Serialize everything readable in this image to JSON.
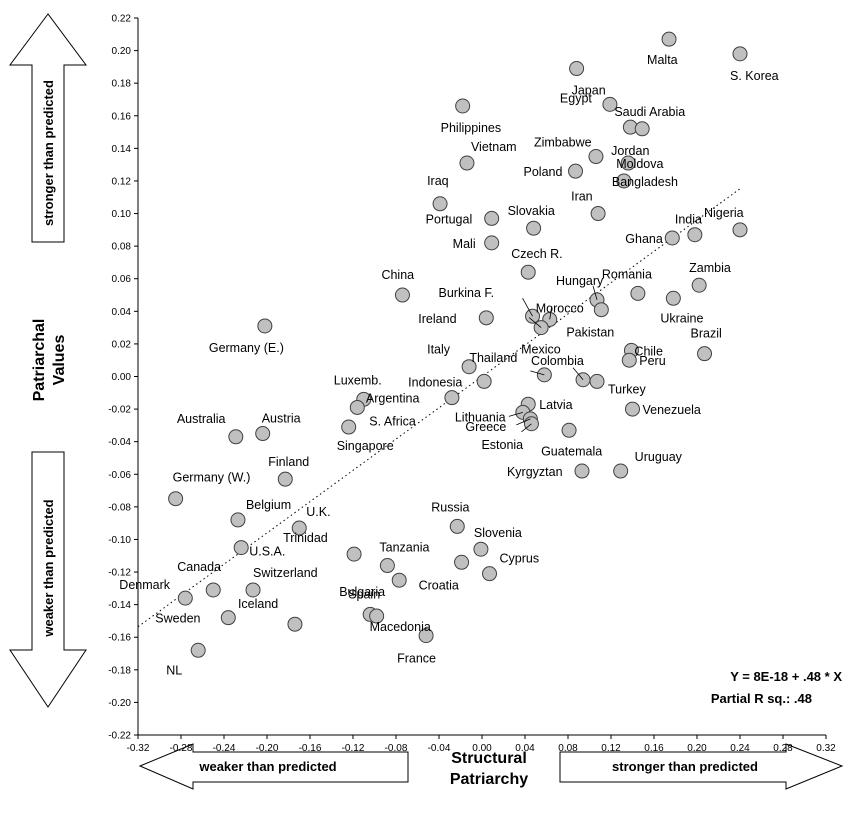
{
  "chart_data": {
    "type": "scatter",
    "xlim": [
      -0.32,
      0.32
    ],
    "ylim": [
      -0.22,
      0.22
    ],
    "x_ticks": [
      "-0.32",
      "-0.28",
      "-0.24",
      "-0.20",
      "-0.16",
      "-0.12",
      "-0.08",
      "-0.04",
      "0.00",
      "0.04",
      "0.08",
      "0.12",
      "0.16",
      "0.20",
      "0.24",
      "0.28",
      "0.32"
    ],
    "y_ticks": [
      "0.22",
      "0.20",
      "0.18",
      "0.16",
      "0.14",
      "0.12",
      "0.10",
      "0.08",
      "0.06",
      "0.04",
      "0.02",
      "0.00",
      "-0.02",
      "-0.04",
      "-0.06",
      "-0.08",
      "-0.10",
      "-0.12",
      "-0.14",
      "-0.16",
      "-0.18",
      "-0.20",
      "-0.22"
    ],
    "xlabel": "Structural Patriarchy",
    "ylabel": "Patriarchal Values",
    "x_arrow_left": "weaker than predicted",
    "x_arrow_right": "stronger than predicted",
    "y_arrow_top": "stronger than predicted",
    "y_arrow_bottom": "weaker than predicted",
    "equation": "Y = 8E-18 + .48 * X",
    "r_squared": "Partial R sq.: .48",
    "trendline": {
      "intercept": 0.0,
      "slope": 0.48,
      "x_range": [
        -0.32,
        0.24
      ]
    },
    "colors": {
      "marker_fill": "#c0c0c0",
      "marker_stroke": "#404040"
    },
    "points": [
      {
        "label": "Malta",
        "x": 0.174,
        "y": 0.207
      },
      {
        "label": "S. Korea",
        "x": 0.24,
        "y": 0.198
      },
      {
        "label": "Japan",
        "x": 0.088,
        "y": 0.189
      },
      {
        "label": "Egypt",
        "x": 0.119,
        "y": 0.167
      },
      {
        "label": "Philippines",
        "x": -0.018,
        "y": 0.166
      },
      {
        "label": "Saudi Arabia",
        "x": 0.138,
        "y": 0.153
      },
      {
        "label": "Jordan",
        "x": 0.149,
        "y": 0.152
      },
      {
        "label": "Zimbabwe",
        "x": 0.106,
        "y": 0.135
      },
      {
        "label": "Vietnam",
        "x": -0.014,
        "y": 0.131
      },
      {
        "label": "Moldova",
        "x": 0.136,
        "y": 0.131
      },
      {
        "label": "Poland",
        "x": 0.087,
        "y": 0.126
      },
      {
        "label": "Bangladesh",
        "x": 0.132,
        "y": 0.12
      },
      {
        "label": "Iraq",
        "x": -0.039,
        "y": 0.106
      },
      {
        "label": "Iran",
        "x": 0.108,
        "y": 0.1
      },
      {
        "label": "Portugal",
        "x": 0.009,
        "y": 0.097
      },
      {
        "label": "Slovakia",
        "x": 0.048,
        "y": 0.091
      },
      {
        "label": "Nigeria",
        "x": 0.24,
        "y": 0.09
      },
      {
        "label": "India",
        "x": 0.198,
        "y": 0.087
      },
      {
        "label": "Ghana",
        "x": 0.177,
        "y": 0.085
      },
      {
        "label": "Mali",
        "x": 0.009,
        "y": 0.082
      },
      {
        "label": "Czech R.",
        "x": 0.043,
        "y": 0.064
      },
      {
        "label": "Zambia",
        "x": 0.202,
        "y": 0.056
      },
      {
        "label": "Romania",
        "x": 0.145,
        "y": 0.051
      },
      {
        "label": "China",
        "x": -0.074,
        "y": 0.05
      },
      {
        "label": "Ukraine",
        "x": 0.178,
        "y": 0.048
      },
      {
        "label": "Hungary",
        "x": 0.107,
        "y": 0.047
      },
      {
        "label": "Pakistan",
        "x": 0.111,
        "y": 0.041
      },
      {
        "label": "Burkina F.",
        "x": 0.047,
        "y": 0.037
      },
      {
        "label": "Morocco",
        "x": 0.063,
        "y": 0.035
      },
      {
        "label": "Ireland",
        "x": 0.004,
        "y": 0.036
      },
      {
        "label": "Mexico",
        "x": 0.055,
        "y": 0.03
      },
      {
        "label": "Germany (E.)",
        "x": -0.202,
        "y": 0.031
      },
      {
        "label": "Chile",
        "x": 0.139,
        "y": 0.016
      },
      {
        "label": "Brazil",
        "x": 0.207,
        "y": 0.014
      },
      {
        "label": "Peru",
        "x": 0.137,
        "y": 0.01
      },
      {
        "label": "Italy",
        "x": -0.012,
        "y": 0.006
      },
      {
        "label": "Thailand",
        "x": 0.058,
        "y": 0.001
      },
      {
        "label": "Colombia",
        "x": 0.094,
        "y": -0.002
      },
      {
        "label": "Turkey",
        "x": 0.107,
        "y": -0.003
      },
      {
        "label": "Indonesia",
        "x": 0.002,
        "y": -0.003
      },
      {
        "label": "Argentina",
        "x": -0.028,
        "y": -0.013
      },
      {
        "label": "Luxemb.",
        "x": -0.11,
        "y": -0.014
      },
      {
        "label": "Latvia",
        "x": 0.043,
        "y": -0.017
      },
      {
        "label": "Venezuela",
        "x": 0.14,
        "y": -0.02
      },
      {
        "label": "S. Africa",
        "x": -0.116,
        "y": -0.019
      },
      {
        "label": "Lithuania",
        "x": 0.038,
        "y": -0.022
      },
      {
        "label": "Greece",
        "x": 0.045,
        "y": -0.026
      },
      {
        "label": "Estonia",
        "x": 0.046,
        "y": -0.029
      },
      {
        "label": "Singapore",
        "x": -0.124,
        "y": -0.031
      },
      {
        "label": "Guatemala",
        "x": 0.081,
        "y": -0.033
      },
      {
        "label": "Austria",
        "x": -0.204,
        "y": -0.035
      },
      {
        "label": "Australia",
        "x": -0.229,
        "y": -0.037
      },
      {
        "label": "Kyrgyztan",
        "x": 0.093,
        "y": -0.058
      },
      {
        "label": "Uruguay",
        "x": 0.129,
        "y": -0.058
      },
      {
        "label": "Finland",
        "x": -0.183,
        "y": -0.063
      },
      {
        "label": "Germany (W.)",
        "x": -0.285,
        "y": -0.075
      },
      {
        "label": "Belgium",
        "x": -0.227,
        "y": -0.088
      },
      {
        "label": "Russia",
        "x": -0.023,
        "y": -0.092
      },
      {
        "label": "U.K.",
        "x": -0.17,
        "y": -0.093
      },
      {
        "label": "U.S.A.",
        "x": -0.224,
        "y": -0.105
      },
      {
        "label": "Slovenia",
        "x": -0.001,
        "y": -0.106
      },
      {
        "label": "Trinidad",
        "x": -0.119,
        "y": -0.109
      },
      {
        "label": "Croatia",
        "x": -0.019,
        "y": -0.114
      },
      {
        "label": "Tanzania",
        "x": -0.088,
        "y": -0.116
      },
      {
        "label": "Cyprus",
        "x": 0.007,
        "y": -0.121
      },
      {
        "label": "Bulgaria",
        "x": -0.077,
        "y": -0.125
      },
      {
        "label": "Canada",
        "x": -0.25,
        "y": -0.131
      },
      {
        "label": "Switzerland",
        "x": -0.213,
        "y": -0.131
      },
      {
        "label": "Denmark",
        "x": -0.276,
        "y": -0.136
      },
      {
        "label": "Spain",
        "x": -0.104,
        "y": -0.146
      },
      {
        "label": "Macedonia",
        "x": -0.098,
        "y": -0.147
      },
      {
        "label": "Sweden",
        "x": -0.236,
        "y": -0.148
      },
      {
        "label": "Iceland",
        "x": -0.174,
        "y": -0.152
      },
      {
        "label": "France",
        "x": -0.052,
        "y": -0.159
      },
      {
        "label": "NL",
        "x": -0.264,
        "y": -0.168
      }
    ]
  }
}
